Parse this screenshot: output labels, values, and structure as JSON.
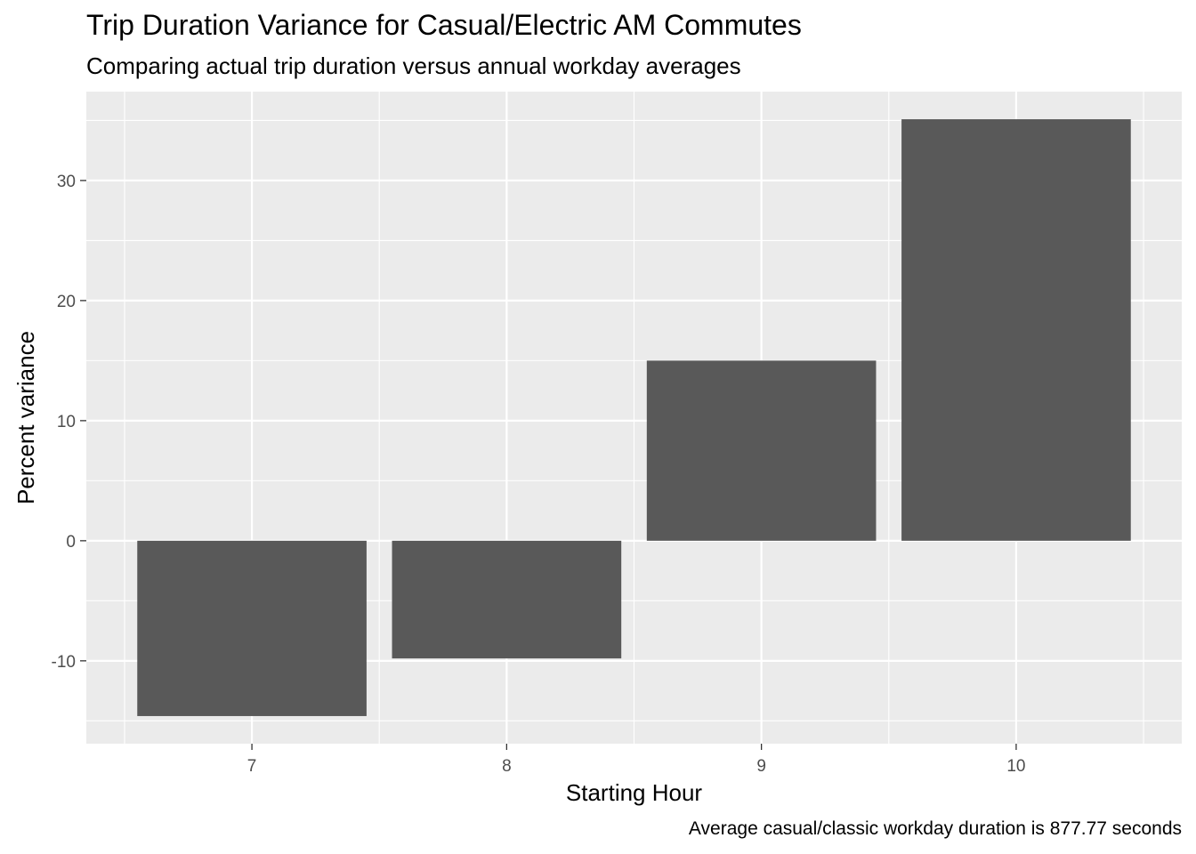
{
  "chart_data": {
    "type": "bar",
    "title": "Trip Duration Variance for Casual/Electric AM Commutes",
    "subtitle": "Comparing actual trip duration versus annual workday averages",
    "caption": "Average casual/classic workday duration is 877.77 seconds",
    "xlabel": "Starting Hour",
    "ylabel": "Percent variance",
    "categories": [
      "7",
      "8",
      "9",
      "10"
    ],
    "values": [
      -14.6,
      -9.8,
      15.0,
      35.1
    ],
    "ylim": [
      -16.9,
      37.4
    ],
    "yticks": [
      -10,
      0,
      10,
      20,
      30
    ],
    "grid": true,
    "colors": {
      "bar": "#595959",
      "panel": "#ebebeb",
      "grid": "#ffffff",
      "axis_text": "#4d4d4d"
    }
  }
}
